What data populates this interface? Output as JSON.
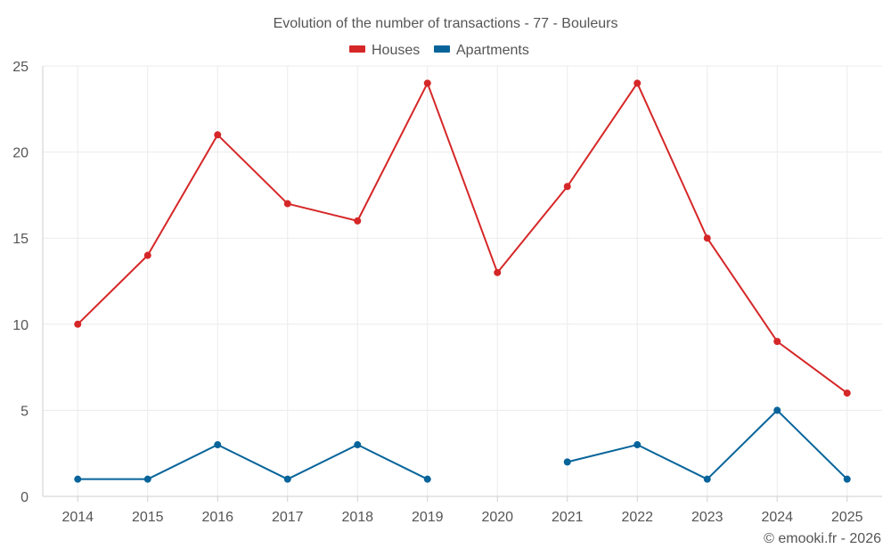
{
  "colors": {
    "houses": "#d62728",
    "apartments": "#07649a"
  },
  "chart_data": {
    "type": "line",
    "title": "Evolution of the number of transactions - 77 - Bouleurs",
    "categories": [
      "2014",
      "2015",
      "2016",
      "2017",
      "2018",
      "2019",
      "2020",
      "2021",
      "2022",
      "2023",
      "2024",
      "2025"
    ],
    "series": [
      {
        "name": "Houses",
        "color": "#d62728",
        "values": [
          10,
          14,
          21,
          17,
          16,
          24,
          13,
          18,
          24,
          15,
          9,
          6
        ]
      },
      {
        "name": "Apartments",
        "color": "#07649a",
        "values": [
          1,
          1,
          3,
          1,
          3,
          1,
          null,
          2,
          3,
          1,
          5,
          1
        ]
      }
    ],
    "ylim": [
      0,
      25
    ],
    "yticks": [
      0,
      5,
      10,
      15,
      20,
      25
    ],
    "xlabel": "",
    "ylabel": "",
    "grid": true,
    "legend": "top-center"
  },
  "credit": "© emooki.fr - 2026"
}
